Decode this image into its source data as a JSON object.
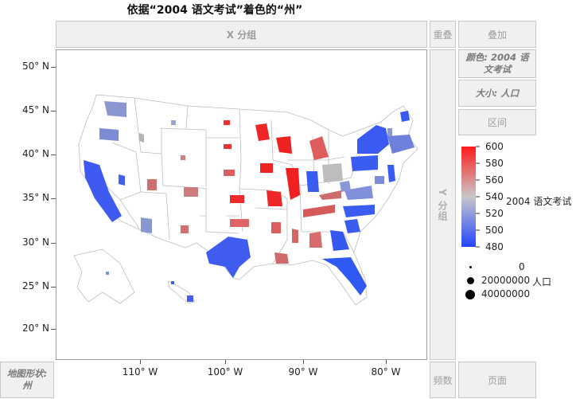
{
  "title": "依据“2004 语文考试”着色的“州”",
  "drop_zones": {
    "x_group": "X 分组",
    "y_group": "Y 分组",
    "overlay": "重叠",
    "stack": "叠加",
    "color": "颜色: 2004 语文考试",
    "size": "大小: 人口",
    "interval": "区间",
    "map_shape": "地图形状: 州",
    "freq": "频数",
    "page": "页面"
  },
  "axes": {
    "lat_labels": [
      "50° N",
      "45° N",
      "40° N",
      "35° N",
      "30° N",
      "25° N",
      "20° N"
    ],
    "lon_labels": [
      "110° W",
      "100° W",
      "90° W",
      "80° W"
    ]
  },
  "color_legend": {
    "title": "2004 语文考试",
    "ticks": [
      "600",
      "580",
      "560",
      "540",
      "520",
      "500",
      "480"
    ],
    "colors": {
      "high": "#ff1a1a",
      "mid": "#c8c8c8",
      "low": "#2244ff"
    }
  },
  "size_legend": {
    "unit": "人口",
    "items": [
      "0",
      "20000000",
      "40000000"
    ]
  }
}
